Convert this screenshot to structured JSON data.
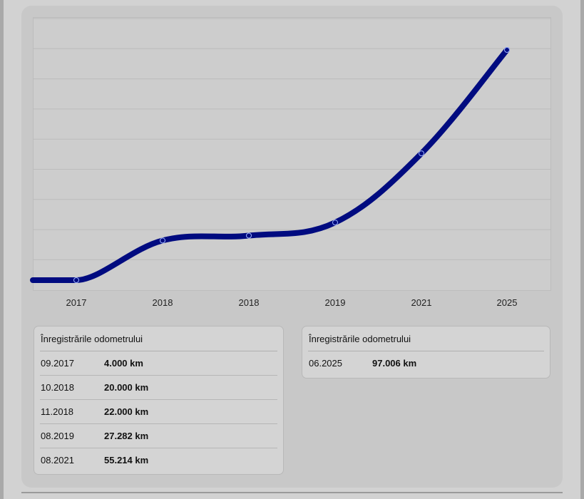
{
  "chart_data": {
    "type": "line",
    "categories": [
      "2017",
      "2018",
      "2018",
      "2019",
      "2021",
      "2025"
    ],
    "values": [
      4000,
      20000,
      22000,
      27282,
      55214,
      97006
    ],
    "ylim": [
      0,
      110000
    ],
    "grid": true,
    "line_color": "#000b80",
    "title": "",
    "xlabel": "",
    "ylabel": ""
  },
  "panels": [
    {
      "title": "Înregistrările odometrului",
      "rows": [
        {
          "date": "09.2017",
          "km": "4.000 km"
        },
        {
          "date": "10.2018",
          "km": "20.000 km"
        },
        {
          "date": "11.2018",
          "km": "22.000 km"
        },
        {
          "date": "08.2019",
          "km": "27.282 km"
        },
        {
          "date": "08.2021",
          "km": "55.214 km"
        }
      ]
    },
    {
      "title": "Înregistrările odometrului",
      "rows": [
        {
          "date": "06.2025",
          "km": "97.006 km"
        }
      ]
    }
  ]
}
